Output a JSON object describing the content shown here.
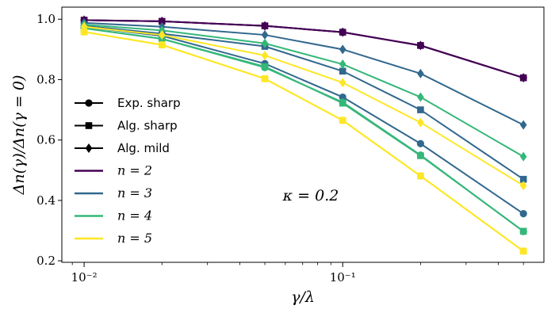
{
  "chart_data": {
    "type": "line",
    "xscale": "log",
    "x": [
      0.01,
      0.02,
      0.05,
      0.1,
      0.2,
      0.5
    ],
    "xlim": [
      0.0082,
      0.6
    ],
    "ylim": [
      0.195,
      1.04
    ],
    "xlabel": "γ/λ",
    "ylabel": "Δn(γ)/Δn(γ = 0)",
    "xticks": [
      {
        "value": 0.01,
        "label": "10⁻²"
      },
      {
        "value": 0.1,
        "label": "10⁻¹"
      }
    ],
    "yticks": [
      {
        "value": 0.2,
        "label": "0.2"
      },
      {
        "value": 0.4,
        "label": "0.4"
      },
      {
        "value": 0.6,
        "label": "0.6"
      },
      {
        "value": 0.8,
        "label": "0.8"
      },
      {
        "value": 1.0,
        "label": "1.0"
      }
    ],
    "annotation": "κ = 0.2",
    "colors": {
      "n2": "#440154",
      "n3": "#31688e",
      "n4": "#35b779",
      "n5": "#fde725"
    },
    "series": [
      {
        "name": "n2-exp",
        "n": 2,
        "marker": "circle",
        "values": [
          0.997,
          0.993,
          0.978,
          0.957,
          0.913,
          0.806
        ]
      },
      {
        "name": "n2-alg-sharp",
        "n": 2,
        "marker": "square",
        "values": [
          0.997,
          0.993,
          0.978,
          0.957,
          0.913,
          0.806
        ]
      },
      {
        "name": "n2-alg-mild",
        "n": 2,
        "marker": "diamond",
        "values": [
          0.997,
          0.993,
          0.978,
          0.957,
          0.913,
          0.806
        ]
      },
      {
        "name": "n3-exp",
        "n": 3,
        "marker": "circle",
        "values": [
          0.975,
          0.945,
          0.853,
          0.742,
          0.588,
          0.356
        ]
      },
      {
        "name": "n3-alg-sharp",
        "n": 3,
        "marker": "square",
        "values": [
          0.978,
          0.952,
          0.91,
          0.828,
          0.7,
          0.47
        ]
      },
      {
        "name": "n3-alg-mild",
        "n": 3,
        "marker": "diamond",
        "values": [
          0.988,
          0.975,
          0.948,
          0.9,
          0.82,
          0.65
        ]
      },
      {
        "name": "n4-exp",
        "n": 4,
        "marker": "circle",
        "values": [
          0.97,
          0.935,
          0.84,
          0.725,
          0.55,
          0.297
        ]
      },
      {
        "name": "n4-alg-sharp",
        "n": 4,
        "marker": "square",
        "values": [
          0.97,
          0.935,
          0.843,
          0.722,
          0.548,
          0.298
        ]
      },
      {
        "name": "n4-alg-mild",
        "n": 4,
        "marker": "diamond",
        "values": [
          0.982,
          0.963,
          0.92,
          0.851,
          0.742,
          0.545
        ]
      },
      {
        "name": "n5-exp",
        "n": 5,
        "marker": "circle",
        "values": [
          0.958,
          0.915,
          0.803,
          0.665,
          0.481,
          0.232
        ]
      },
      {
        "name": "n5-alg-sharp",
        "n": 5,
        "marker": "square",
        "values": [
          0.958,
          0.915,
          0.803,
          0.665,
          0.481,
          0.232
        ]
      },
      {
        "name": "n5-alg-mild",
        "n": 5,
        "marker": "diamond",
        "values": [
          0.975,
          0.948,
          0.88,
          0.79,
          0.658,
          0.449
        ]
      }
    ],
    "legend": {
      "position": "left",
      "marker_entries": [
        {
          "marker": "circle",
          "label": "Exp. sharp"
        },
        {
          "marker": "square",
          "label": "Alg. sharp"
        },
        {
          "marker": "diamond",
          "label": "Alg. mild"
        }
      ],
      "color_entries": [
        {
          "n": 2,
          "label": "n = 2"
        },
        {
          "n": 3,
          "label": "n = 3"
        },
        {
          "n": 4,
          "label": "n = 4"
        },
        {
          "n": 5,
          "label": "n = 5"
        }
      ]
    }
  }
}
